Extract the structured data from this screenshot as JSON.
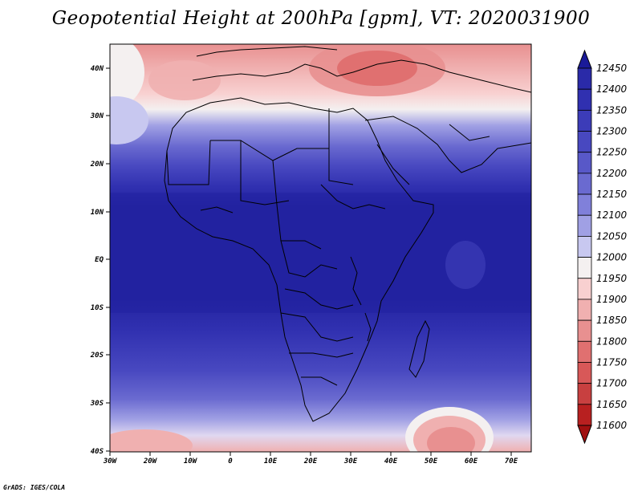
{
  "title": "Geopotential Height at 200hPa [gpm], VT: 2020031900",
  "footer": "GrADS: IGES/COLA",
  "map": {
    "lon_range": [
      -30,
      75
    ],
    "lat_range": [
      -40,
      45
    ],
    "lat_ticks": [
      "40N",
      "30N",
      "20N",
      "10N",
      "EQ",
      "10S",
      "20S",
      "30S",
      "40S"
    ],
    "lon_ticks": [
      "30W",
      "20W",
      "10W",
      "0",
      "10E",
      "20E",
      "30E",
      "40E",
      "50E",
      "60E",
      "70E"
    ]
  },
  "colorbar": {
    "levels": [
      "12450",
      "12400",
      "12350",
      "12300",
      "12250",
      "12200",
      "12150",
      "12100",
      "12050",
      "12000",
      "11950",
      "11900",
      "11850",
      "11800",
      "11750",
      "11700",
      "11650",
      "11600"
    ],
    "colors": [
      "#1a1a99",
      "#2a2aa8",
      "#3030b0",
      "#3c3cb8",
      "#4848c0",
      "#5858c8",
      "#6a6ad0",
      "#8080da",
      "#a0a0e4",
      "#c8c8f0",
      "#f4f0f0",
      "#f8d0d0",
      "#f0b0b0",
      "#e89090",
      "#e07070",
      "#d85858",
      "#c84040",
      "#b82020",
      "#a01010"
    ]
  }
}
